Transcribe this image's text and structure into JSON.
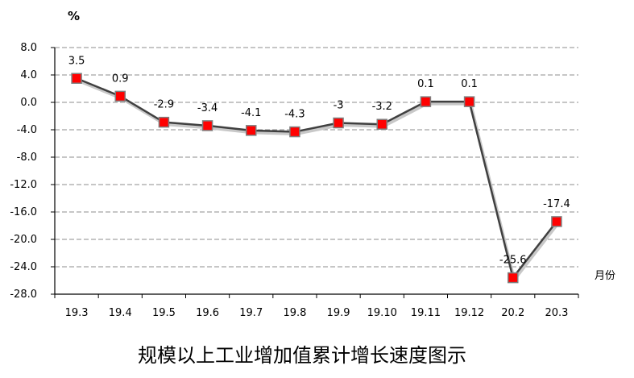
{
  "chart_data": {
    "type": "line",
    "title": "规模以上工业增加值累计增长速度图示",
    "ylabel": "%",
    "xlabel": "月份",
    "categories": [
      "19.3",
      "19.4",
      "19.5",
      "19.6",
      "19.7",
      "19.8",
      "19.9",
      "19.10",
      "19.11",
      "19.12",
      "20.2",
      "20.3"
    ],
    "series": [
      {
        "values": [
          3.5,
          0.9,
          -2.9,
          -3.4,
          -4.1,
          -4.3,
          -3,
          -3.2,
          0.1,
          0.1,
          -25.6,
          -17.4
        ],
        "data_labels": [
          "3.5",
          "0.9",
          "-2.9",
          "-3.4",
          "-4.1",
          "-4.3",
          "-3",
          "-3.2",
          "0.1",
          "0.1",
          "-25.6",
          "-17.4"
        ]
      }
    ],
    "ylim": [
      -28,
      8
    ],
    "yticks": [
      8,
      4,
      0,
      -4,
      -8,
      -12,
      -16,
      -20,
      -24,
      -28
    ],
    "ytick_labels": [
      "8.0",
      "4.0",
      "0.0",
      "-4.0",
      "-8.0",
      "-12.0",
      "-16.0",
      "-20.0",
      "-24.0",
      "-28.0"
    ],
    "grid": true,
    "gridline_style": "dashed",
    "line_color": "#404040",
    "marker_fill": "#ff0000",
    "marker_stroke": "#7f7f7f"
  }
}
